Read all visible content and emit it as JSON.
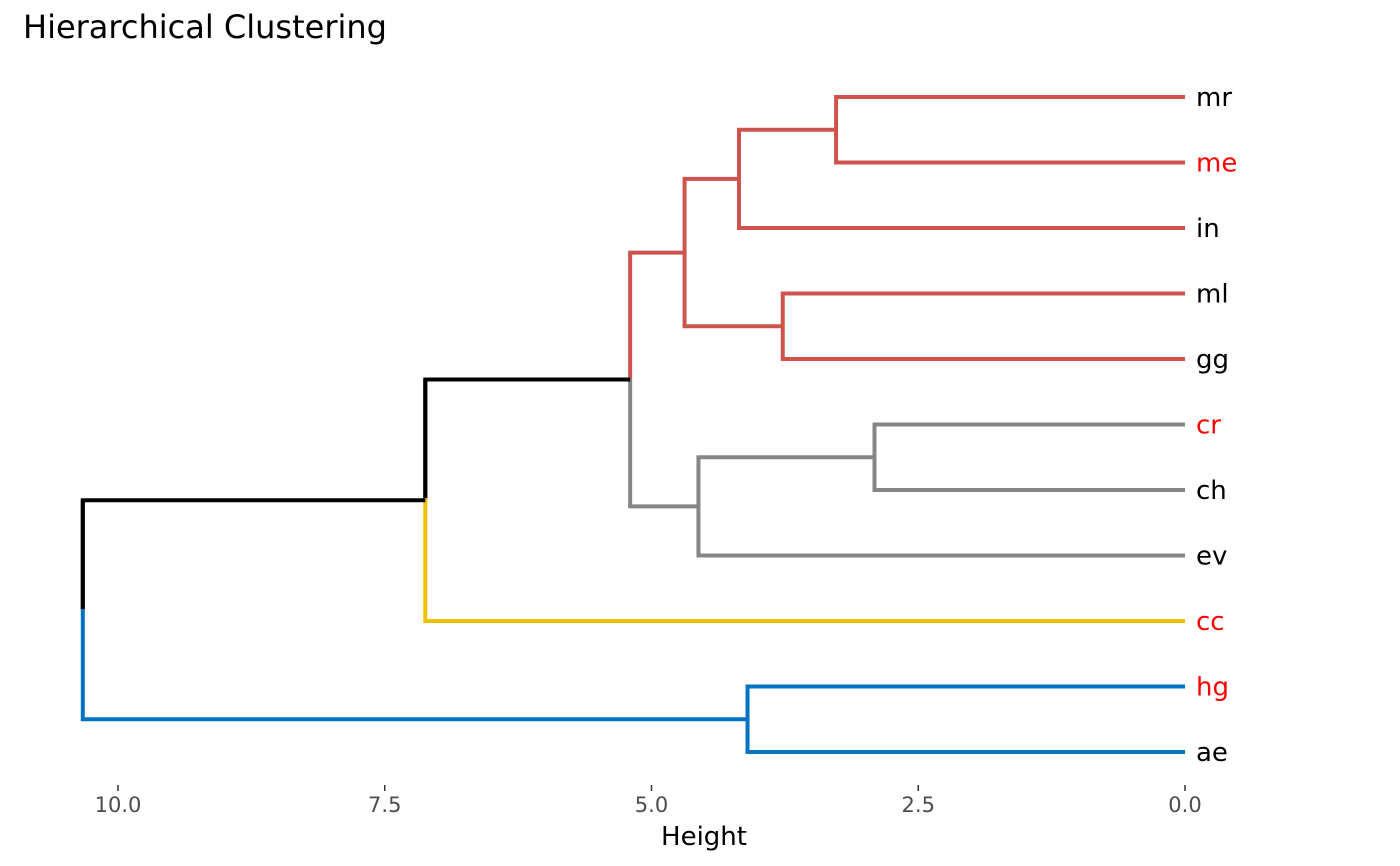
{
  "chart_data": {
    "type": "dendrogram",
    "orientation": "horizontal",
    "title": "Hierarchical Clustering",
    "xlabel": "Height",
    "xlim": [
      10.0,
      0.0
    ],
    "x_ticks": [
      "10.0",
      "7.5",
      "5.0",
      "2.5",
      "0.0"
    ],
    "x_tick_values": [
      10.0,
      7.5,
      5.0,
      2.5,
      0.0
    ],
    "grid": false,
    "leaves": [
      {
        "label": "mr",
        "label_color": "#000000"
      },
      {
        "label": "me",
        "label_color": "#ff0000"
      },
      {
        "label": "in",
        "label_color": "#000000"
      },
      {
        "label": "ml",
        "label_color": "#000000"
      },
      {
        "label": "gg",
        "label_color": "#000000"
      },
      {
        "label": "cr",
        "label_color": "#ff0000"
      },
      {
        "label": "ch",
        "label_color": "#000000"
      },
      {
        "label": "ev",
        "label_color": "#000000"
      },
      {
        "label": "cc",
        "label_color": "#ff0000"
      },
      {
        "label": "hg",
        "label_color": "#ff0000"
      },
      {
        "label": "ae",
        "label_color": "#000000"
      }
    ],
    "merges": [
      {
        "left": "mr",
        "right": "me",
        "height": 3.27,
        "color": "#cd534c"
      },
      {
        "left": "mr+me",
        "right": "in",
        "height": 4.18,
        "color": "#cd534c"
      },
      {
        "left": "ml",
        "right": "gg",
        "height": 3.77,
        "color": "#cd534c"
      },
      {
        "left": "mr+me+in",
        "right": "ml+gg",
        "height": 4.69,
        "color": "#cd534c"
      },
      {
        "left": "cr",
        "right": "ch",
        "height": 2.91,
        "color": "#868686"
      },
      {
        "left": "cr+ch",
        "right": "ev",
        "height": 4.56,
        "color": "#868686"
      },
      {
        "left": "red-cluster",
        "right": "gray-cluster",
        "height": 5.2,
        "color": "#000000"
      },
      {
        "left": "red+gray",
        "right": "cc",
        "height": 7.12,
        "color": "#000000"
      },
      {
        "left": "hg",
        "right": "ae",
        "height": 4.1,
        "color": "#0073c2"
      },
      {
        "left": "upper",
        "right": "hg+ae",
        "height": 10.33,
        "color": "#000000"
      }
    ],
    "cluster_colors": {
      "red": "#cd534c",
      "gray": "#868686",
      "yellow": "#efc000",
      "blue": "#0073c2",
      "root": "#000000"
    }
  }
}
